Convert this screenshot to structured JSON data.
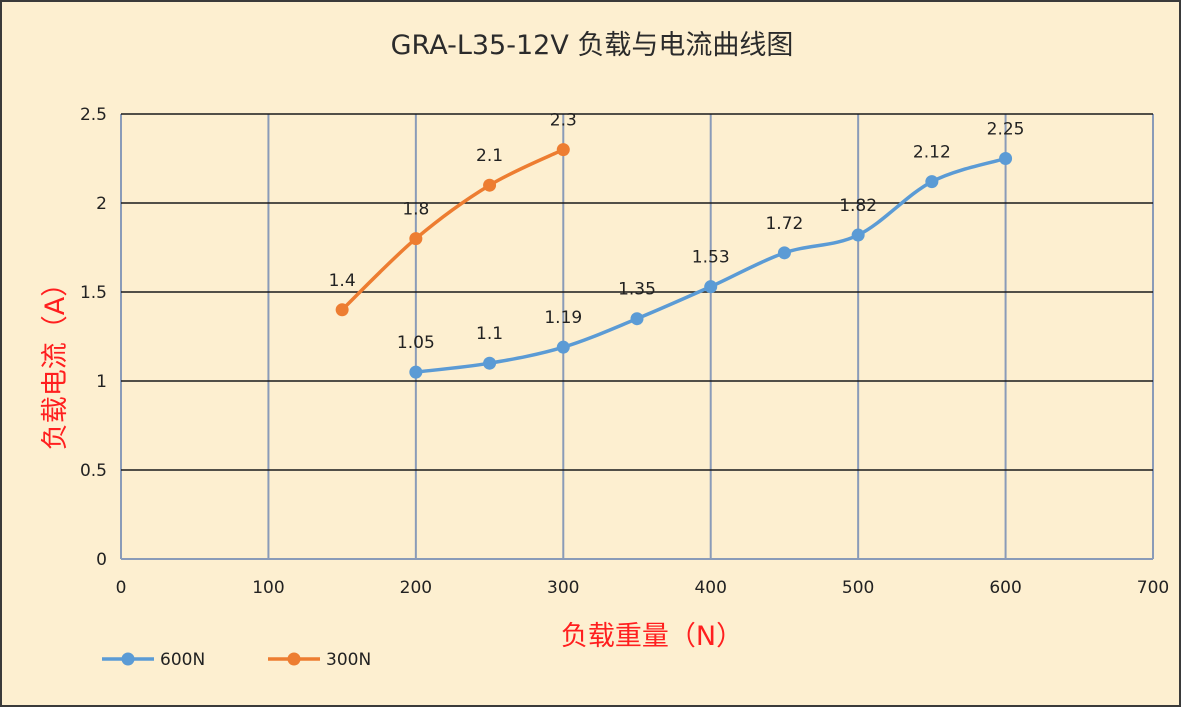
{
  "chart_data": {
    "type": "line",
    "title": "GRA-L35-12V 负载与电流曲线图",
    "xlabel": "负载重量（N）",
    "ylabel": "负载电流（A）",
    "xlim": [
      0,
      700
    ],
    "ylim": [
      0,
      2.5
    ],
    "x_ticks": [
      0,
      100,
      200,
      300,
      400,
      500,
      600,
      700
    ],
    "y_ticks": [
      0,
      0.5,
      1,
      1.5,
      2,
      2.5
    ],
    "x_tick_labels": [
      "0",
      "100",
      "200",
      "300",
      "400",
      "500",
      "600",
      "700"
    ],
    "y_tick_labels": [
      "0",
      "0.5",
      "1",
      "1.5",
      "2",
      "2.5"
    ],
    "grid": true,
    "legend_position": "bottom-left",
    "series": [
      {
        "name": "600N",
        "color": "#5b9bd5",
        "x": [
          200,
          250,
          300,
          350,
          400,
          450,
          500,
          550,
          600
        ],
        "y": [
          1.05,
          1.1,
          1.19,
          1.35,
          1.53,
          1.72,
          1.82,
          2.12,
          2.25
        ],
        "labels": [
          "1.05",
          "1.1",
          "1.19",
          "1.35",
          "1.53",
          "1.72",
          "1.82",
          "2.12",
          "2.25"
        ]
      },
      {
        "name": "300N",
        "color": "#ed7d31",
        "x": [
          150,
          200,
          250,
          300
        ],
        "y": [
          1.4,
          1.8,
          2.1,
          2.3
        ],
        "labels": [
          "1.4",
          "1.8",
          "2.1",
          "2.3"
        ]
      }
    ],
    "colors": {
      "background": "#fdefd0",
      "grid_horizontal": "#1a1a1a",
      "grid_vertical": "#8a9bb8",
      "axis_title": "#ff1f1f"
    }
  }
}
